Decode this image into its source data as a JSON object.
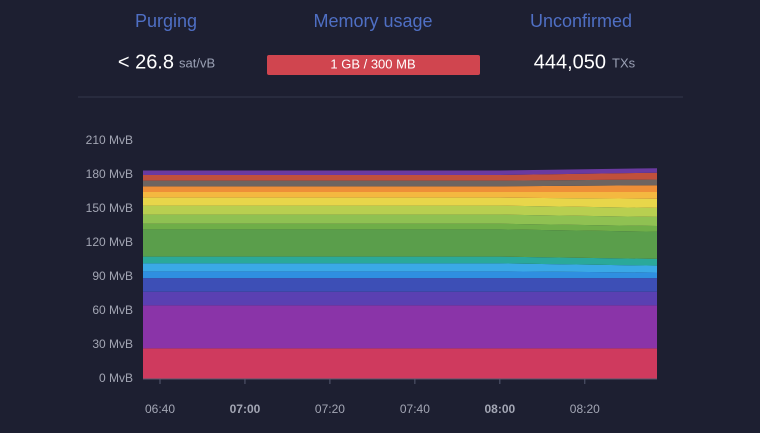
{
  "header": {
    "stats": [
      {
        "title": "Purging",
        "value": "< 26.8",
        "unit": "sat/vB"
      },
      {
        "title": "Memory usage",
        "value": "1 GB / 300 MB"
      },
      {
        "title": "Unconfirmed",
        "value": "444,050",
        "unit": "TXs"
      }
    ]
  },
  "chart_data": {
    "type": "stacked_area",
    "x": [
      "06:36",
      "08:00",
      "08:37"
    ],
    "xlim": [
      "06:36",
      "08:37"
    ],
    "xticks": [
      "06:40",
      "07:00",
      "07:20",
      "07:40",
      "08:00",
      "08:20"
    ],
    "ylim": [
      0,
      210
    ],
    "yticks": [
      {
        "value": 0,
        "label": "0 MvB"
      },
      {
        "value": 30,
        "label": "30 MvB"
      },
      {
        "value": 60,
        "label": "60 MvB"
      },
      {
        "value": 90,
        "label": "90 MvB"
      },
      {
        "value": 120,
        "label": "120 MvB"
      },
      {
        "value": 150,
        "label": "150 MvB"
      },
      {
        "value": 180,
        "label": "180 MvB"
      },
      {
        "value": 210,
        "label": "210 MvB"
      }
    ],
    "series": [
      {
        "color": "#cf3a5e",
        "values": [
          27,
          27,
          27
        ]
      },
      {
        "color": "#8a34a8",
        "values": [
          38,
          38,
          38
        ]
      },
      {
        "color": "#5a40b2",
        "values": [
          12,
          12,
          12
        ]
      },
      {
        "color": "#3d4fb6",
        "values": [
          12,
          12,
          12
        ]
      },
      {
        "color": "#2f8fe0",
        "values": [
          6,
          6,
          5
        ]
      },
      {
        "color": "#3aa9e6",
        "values": [
          7,
          7,
          6
        ]
      },
      {
        "color": "#2aa99a",
        "values": [
          6,
          6,
          6
        ]
      },
      {
        "color": "#5a9e4b",
        "values": [
          24,
          24,
          24
        ]
      },
      {
        "color": "#6fae48",
        "values": [
          5,
          5,
          5
        ]
      },
      {
        "color": "#8fc152",
        "values": [
          8,
          8,
          8
        ]
      },
      {
        "color": "#b8cf50",
        "values": [
          8,
          8,
          8
        ]
      },
      {
        "color": "#e8d64a",
        "values": [
          7,
          7,
          8
        ]
      },
      {
        "color": "#f4b840",
        "values": [
          5,
          5,
          6
        ]
      },
      {
        "color": "#ee8f38",
        "values": [
          5,
          5,
          6
        ]
      },
      {
        "color": "#6e6460",
        "values": [
          5,
          5,
          5
        ]
      },
      {
        "color": "#c0503c",
        "values": [
          5,
          5,
          6
        ]
      },
      {
        "color": "#6a3aa0",
        "values": [
          4,
          4,
          4
        ]
      }
    ]
  }
}
